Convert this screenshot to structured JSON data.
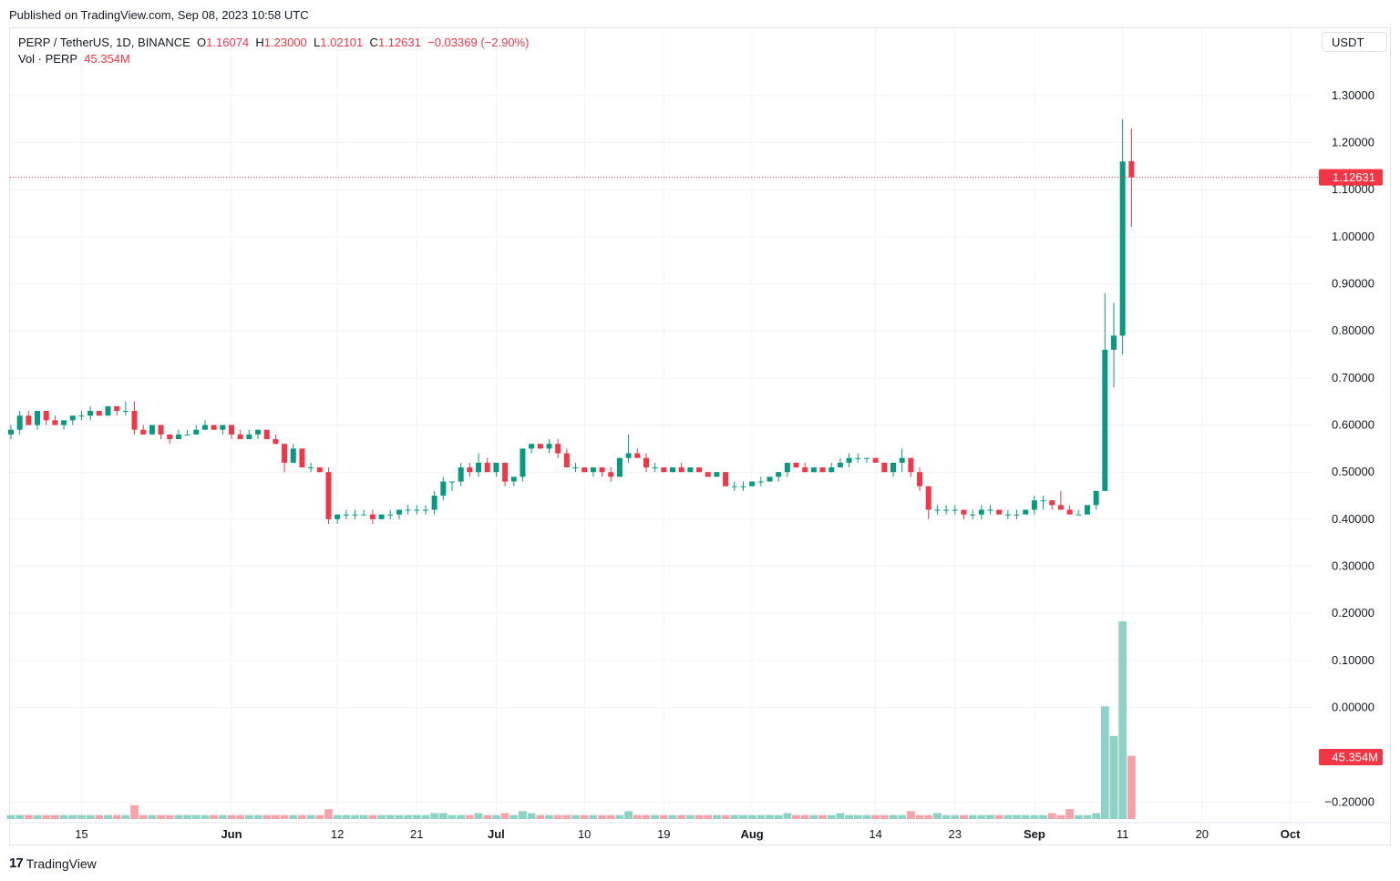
{
  "header": {
    "published": "Published on TradingView.com, Sep 08, 2023 10:58 UTC"
  },
  "legend": {
    "symbol": "PERP / TetherUS, 1D, BINANCE",
    "o_label": "O",
    "o_value": "1.16074",
    "h_label": "H",
    "h_value": "1.23000",
    "l_label": "L",
    "l_value": "1.02101",
    "c_label": "C",
    "c_value": "1.12631",
    "change": "−0.03369 (−2.90%)",
    "vol_label": "Vol · PERP",
    "vol_value": "45.354M"
  },
  "currency_button": "USDT",
  "footer": {
    "brand": "TradingView",
    "mark": "17"
  },
  "colors": {
    "up": "#089981",
    "down": "#f23645",
    "vol_up": "#8ed1c6",
    "vol_down": "#f5a3a8",
    "grid": "#f0f3fa"
  },
  "chart_data": {
    "type": "candlestick",
    "symbol": "PERP / TetherUS",
    "interval": "1D",
    "exchange": "BINANCE",
    "ylim": [
      -0.25,
      1.35
    ],
    "y_ticks": [
      "1.30000",
      "1.20000",
      "1.10000",
      "1.00000",
      "0.90000",
      "0.80000",
      "0.70000",
      "0.60000",
      "0.50000",
      "0.40000",
      "0.30000",
      "0.20000",
      "0.10000",
      "0.00000",
      "−0.20000"
    ],
    "y_tick_values": [
      1.3,
      1.2,
      1.1,
      1.0,
      0.9,
      0.8,
      0.7,
      0.6,
      0.5,
      0.4,
      0.3,
      0.2,
      0.1,
      0.0,
      -0.2
    ],
    "x_ticks": [
      "15",
      "Jun",
      "12",
      "21",
      "Jul",
      "10",
      "19",
      "Aug",
      "14",
      "23",
      "Sep",
      "11",
      "20",
      "Oct"
    ],
    "x_tick_index": [
      8,
      25,
      37,
      46,
      55,
      65,
      74,
      84,
      98,
      107,
      116,
      126,
      135,
      145
    ],
    "last_price_label": "1.12631",
    "last_price": 1.12631,
    "volume_label": "45.354M",
    "candles": [
      [
        0.58,
        0.6,
        0.57,
        0.59
      ],
      [
        0.59,
        0.63,
        0.58,
        0.62
      ],
      [
        0.62,
        0.63,
        0.6,
        0.6
      ],
      [
        0.6,
        0.63,
        0.59,
        0.63
      ],
      [
        0.63,
        0.63,
        0.6,
        0.61
      ],
      [
        0.61,
        0.62,
        0.6,
        0.6
      ],
      [
        0.6,
        0.61,
        0.59,
        0.61
      ],
      [
        0.61,
        0.62,
        0.6,
        0.62
      ],
      [
        0.62,
        0.63,
        0.61,
        0.62
      ],
      [
        0.62,
        0.64,
        0.61,
        0.63
      ],
      [
        0.63,
        0.63,
        0.62,
        0.62
      ],
      [
        0.62,
        0.64,
        0.62,
        0.64
      ],
      [
        0.64,
        0.64,
        0.62,
        0.63
      ],
      [
        0.63,
        0.65,
        0.62,
        0.63
      ],
      [
        0.63,
        0.65,
        0.58,
        0.59
      ],
      [
        0.59,
        0.6,
        0.58,
        0.58
      ],
      [
        0.58,
        0.6,
        0.58,
        0.6
      ],
      [
        0.6,
        0.6,
        0.57,
        0.58
      ],
      [
        0.58,
        0.58,
        0.56,
        0.57
      ],
      [
        0.57,
        0.59,
        0.57,
        0.58
      ],
      [
        0.58,
        0.59,
        0.58,
        0.58
      ],
      [
        0.58,
        0.6,
        0.58,
        0.59
      ],
      [
        0.59,
        0.61,
        0.59,
        0.6
      ],
      [
        0.6,
        0.6,
        0.59,
        0.59
      ],
      [
        0.59,
        0.6,
        0.58,
        0.6
      ],
      [
        0.6,
        0.6,
        0.57,
        0.58
      ],
      [
        0.58,
        0.59,
        0.57,
        0.57
      ],
      [
        0.57,
        0.59,
        0.57,
        0.58
      ],
      [
        0.58,
        0.59,
        0.57,
        0.59
      ],
      [
        0.59,
        0.59,
        0.57,
        0.57
      ],
      [
        0.57,
        0.58,
        0.56,
        0.56
      ],
      [
        0.56,
        0.56,
        0.5,
        0.52
      ],
      [
        0.52,
        0.56,
        0.52,
        0.55
      ],
      [
        0.55,
        0.55,
        0.51,
        0.51
      ],
      [
        0.51,
        0.52,
        0.5,
        0.51
      ],
      [
        0.51,
        0.51,
        0.5,
        0.5
      ],
      [
        0.5,
        0.51,
        0.39,
        0.4
      ],
      [
        0.4,
        0.41,
        0.39,
        0.41
      ],
      [
        0.41,
        0.42,
        0.4,
        0.41
      ],
      [
        0.41,
        0.42,
        0.4,
        0.41
      ],
      [
        0.41,
        0.42,
        0.41,
        0.41
      ],
      [
        0.41,
        0.42,
        0.39,
        0.4
      ],
      [
        0.4,
        0.41,
        0.4,
        0.41
      ],
      [
        0.41,
        0.42,
        0.4,
        0.41
      ],
      [
        0.41,
        0.42,
        0.4,
        0.42
      ],
      [
        0.42,
        0.43,
        0.41,
        0.42
      ],
      [
        0.42,
        0.43,
        0.41,
        0.42
      ],
      [
        0.42,
        0.43,
        0.41,
        0.42
      ],
      [
        0.42,
        0.46,
        0.41,
        0.45
      ],
      [
        0.45,
        0.49,
        0.44,
        0.48
      ],
      [
        0.48,
        0.48,
        0.46,
        0.48
      ],
      [
        0.48,
        0.52,
        0.47,
        0.51
      ],
      [
        0.51,
        0.52,
        0.49,
        0.5
      ],
      [
        0.5,
        0.54,
        0.49,
        0.52
      ],
      [
        0.52,
        0.53,
        0.5,
        0.5
      ],
      [
        0.5,
        0.52,
        0.49,
        0.52
      ],
      [
        0.52,
        0.52,
        0.47,
        0.48
      ],
      [
        0.48,
        0.49,
        0.47,
        0.49
      ],
      [
        0.49,
        0.55,
        0.48,
        0.55
      ],
      [
        0.55,
        0.56,
        0.54,
        0.56
      ],
      [
        0.56,
        0.56,
        0.55,
        0.55
      ],
      [
        0.55,
        0.57,
        0.54,
        0.56
      ],
      [
        0.56,
        0.57,
        0.53,
        0.54
      ],
      [
        0.54,
        0.55,
        0.51,
        0.51
      ],
      [
        0.51,
        0.52,
        0.5,
        0.51
      ],
      [
        0.51,
        0.51,
        0.5,
        0.5
      ],
      [
        0.5,
        0.51,
        0.49,
        0.51
      ],
      [
        0.51,
        0.51,
        0.49,
        0.5
      ],
      [
        0.5,
        0.51,
        0.48,
        0.49
      ],
      [
        0.49,
        0.53,
        0.49,
        0.53
      ],
      [
        0.53,
        0.58,
        0.52,
        0.54
      ],
      [
        0.54,
        0.55,
        0.53,
        0.53
      ],
      [
        0.53,
        0.54,
        0.5,
        0.51
      ],
      [
        0.51,
        0.52,
        0.5,
        0.51
      ],
      [
        0.51,
        0.51,
        0.5,
        0.5
      ],
      [
        0.5,
        0.51,
        0.5,
        0.51
      ],
      [
        0.51,
        0.52,
        0.5,
        0.5
      ],
      [
        0.5,
        0.51,
        0.5,
        0.51
      ],
      [
        0.51,
        0.51,
        0.5,
        0.5
      ],
      [
        0.5,
        0.5,
        0.49,
        0.49
      ],
      [
        0.49,
        0.5,
        0.49,
        0.5
      ],
      [
        0.5,
        0.5,
        0.47,
        0.47
      ],
      [
        0.47,
        0.48,
        0.46,
        0.47
      ],
      [
        0.47,
        0.48,
        0.46,
        0.47
      ],
      [
        0.47,
        0.48,
        0.47,
        0.48
      ],
      [
        0.48,
        0.49,
        0.47,
        0.48
      ],
      [
        0.48,
        0.49,
        0.48,
        0.49
      ],
      [
        0.49,
        0.5,
        0.48,
        0.5
      ],
      [
        0.5,
        0.52,
        0.49,
        0.52
      ],
      [
        0.52,
        0.52,
        0.51,
        0.51
      ],
      [
        0.51,
        0.52,
        0.5,
        0.5
      ],
      [
        0.5,
        0.51,
        0.5,
        0.51
      ],
      [
        0.51,
        0.51,
        0.5,
        0.5
      ],
      [
        0.5,
        0.52,
        0.5,
        0.51
      ],
      [
        0.51,
        0.53,
        0.51,
        0.52
      ],
      [
        0.52,
        0.54,
        0.51,
        0.53
      ],
      [
        0.53,
        0.54,
        0.52,
        0.53
      ],
      [
        0.53,
        0.53,
        0.52,
        0.53
      ],
      [
        0.53,
        0.53,
        0.52,
        0.52
      ],
      [
        0.52,
        0.52,
        0.5,
        0.5
      ],
      [
        0.5,
        0.52,
        0.49,
        0.52
      ],
      [
        0.52,
        0.55,
        0.5,
        0.53
      ],
      [
        0.53,
        0.53,
        0.49,
        0.5
      ],
      [
        0.5,
        0.51,
        0.46,
        0.47
      ],
      [
        0.47,
        0.47,
        0.4,
        0.42
      ],
      [
        0.42,
        0.43,
        0.41,
        0.42
      ],
      [
        0.42,
        0.43,
        0.41,
        0.42
      ],
      [
        0.42,
        0.43,
        0.41,
        0.42
      ],
      [
        0.42,
        0.42,
        0.4,
        0.41
      ],
      [
        0.41,
        0.42,
        0.4,
        0.41
      ],
      [
        0.41,
        0.43,
        0.4,
        0.42
      ],
      [
        0.42,
        0.43,
        0.41,
        0.42
      ],
      [
        0.42,
        0.42,
        0.41,
        0.41
      ],
      [
        0.41,
        0.42,
        0.4,
        0.41
      ],
      [
        0.41,
        0.42,
        0.4,
        0.41
      ],
      [
        0.41,
        0.42,
        0.41,
        0.42
      ],
      [
        0.42,
        0.45,
        0.41,
        0.44
      ],
      [
        0.44,
        0.45,
        0.42,
        0.44
      ],
      [
        0.44,
        0.44,
        0.42,
        0.43
      ],
      [
        0.43,
        0.46,
        0.42,
        0.42
      ],
      [
        0.42,
        0.43,
        0.41,
        0.41
      ],
      [
        0.41,
        0.42,
        0.41,
        0.41
      ],
      [
        0.41,
        0.43,
        0.41,
        0.43
      ],
      [
        0.43,
        0.46,
        0.42,
        0.46
      ],
      [
        0.46,
        0.88,
        0.46,
        0.76
      ],
      [
        0.76,
        0.86,
        0.68,
        0.79
      ],
      [
        0.79,
        1.25,
        0.75,
        1.16
      ],
      [
        1.16074,
        1.23,
        1.02101,
        1.12631
      ]
    ],
    "volume_rel": [
      0.02,
      0.02,
      0.02,
      0.02,
      0.02,
      0.02,
      0.02,
      0.02,
      0.02,
      0.02,
      0.02,
      0.02,
      0.02,
      0.02,
      0.07,
      0.02,
      0.02,
      0.02,
      0.02,
      0.02,
      0.02,
      0.02,
      0.02,
      0.02,
      0.02,
      0.02,
      0.02,
      0.02,
      0.02,
      0.02,
      0.02,
      0.02,
      0.02,
      0.02,
      0.02,
      0.02,
      0.05,
      0.02,
      0.02,
      0.02,
      0.02,
      0.02,
      0.02,
      0.02,
      0.02,
      0.02,
      0.02,
      0.02,
      0.03,
      0.03,
      0.02,
      0.02,
      0.02,
      0.03,
      0.02,
      0.02,
      0.03,
      0.02,
      0.04,
      0.03,
      0.02,
      0.02,
      0.02,
      0.02,
      0.02,
      0.02,
      0.02,
      0.02,
      0.02,
      0.02,
      0.04,
      0.02,
      0.02,
      0.02,
      0.02,
      0.02,
      0.02,
      0.02,
      0.02,
      0.02,
      0.02,
      0.02,
      0.02,
      0.02,
      0.02,
      0.02,
      0.02,
      0.02,
      0.03,
      0.02,
      0.02,
      0.02,
      0.02,
      0.02,
      0.03,
      0.02,
      0.02,
      0.02,
      0.02,
      0.02,
      0.02,
      0.02,
      0.04,
      0.02,
      0.02,
      0.03,
      0.02,
      0.02,
      0.02,
      0.02,
      0.02,
      0.02,
      0.02,
      0.02,
      0.02,
      0.02,
      0.02,
      0.02,
      0.03,
      0.02,
      0.05,
      0.02,
      0.02,
      0.03,
      0.57,
      0.42,
      1.0,
      0.32
    ]
  }
}
